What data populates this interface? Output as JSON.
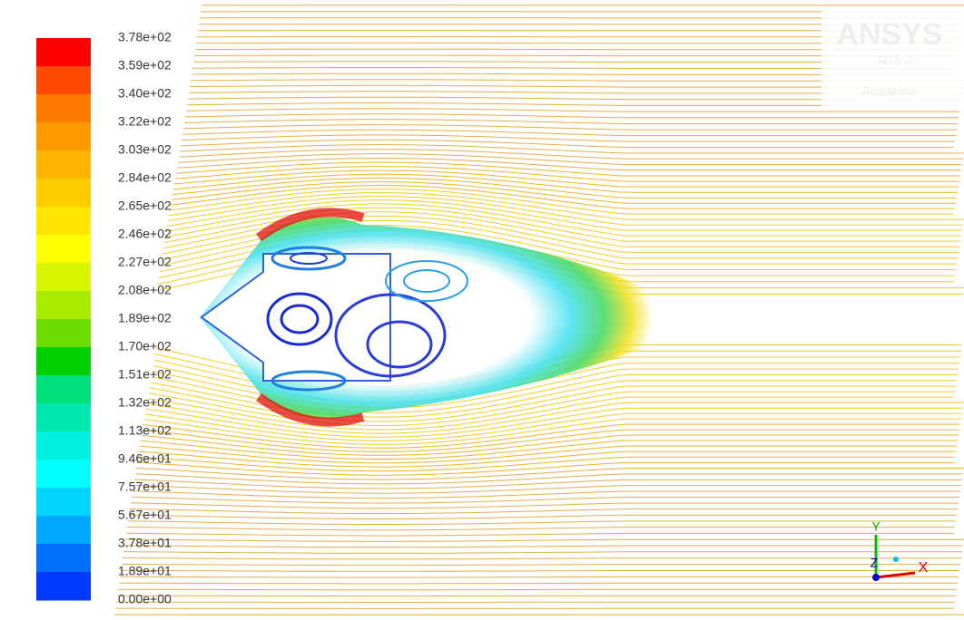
{
  "colorbar": {
    "labels": [
      "3.78e+02",
      "3.59e+02",
      "3.40e+02",
      "3.22e+02",
      "3.03e+02",
      "2.84e+02",
      "2.65e+02",
      "2.46e+02",
      "2.27e+02",
      "2.08e+02",
      "1.89e+02",
      "1.70e+02",
      "1.51e+02",
      "1.32e+02",
      "1.13e+02",
      "9.46e+01",
      "7.57e+01",
      "5.67e+01",
      "3.78e+01",
      "1.89e+01",
      "0.00e+00"
    ],
    "colors": [
      "#ff0000",
      "#ff4a00",
      "#ff7a00",
      "#ff9a00",
      "#ffb400",
      "#ffcc00",
      "#ffe600",
      "#ffff00",
      "#d8f500",
      "#a8ea00",
      "#6edc00",
      "#00d000",
      "#00e07a",
      "#00e8b0",
      "#00f0e0",
      "#00ffff",
      "#00d4ff",
      "#00a8ff",
      "#0070ff",
      "#0038ff",
      "#0000ff"
    ]
  },
  "logo": {
    "brand": "ANSYS",
    "version": "R15.0",
    "edition": "Academic"
  },
  "axes": {
    "y": "Y",
    "z": "Z",
    "x": "X"
  }
}
